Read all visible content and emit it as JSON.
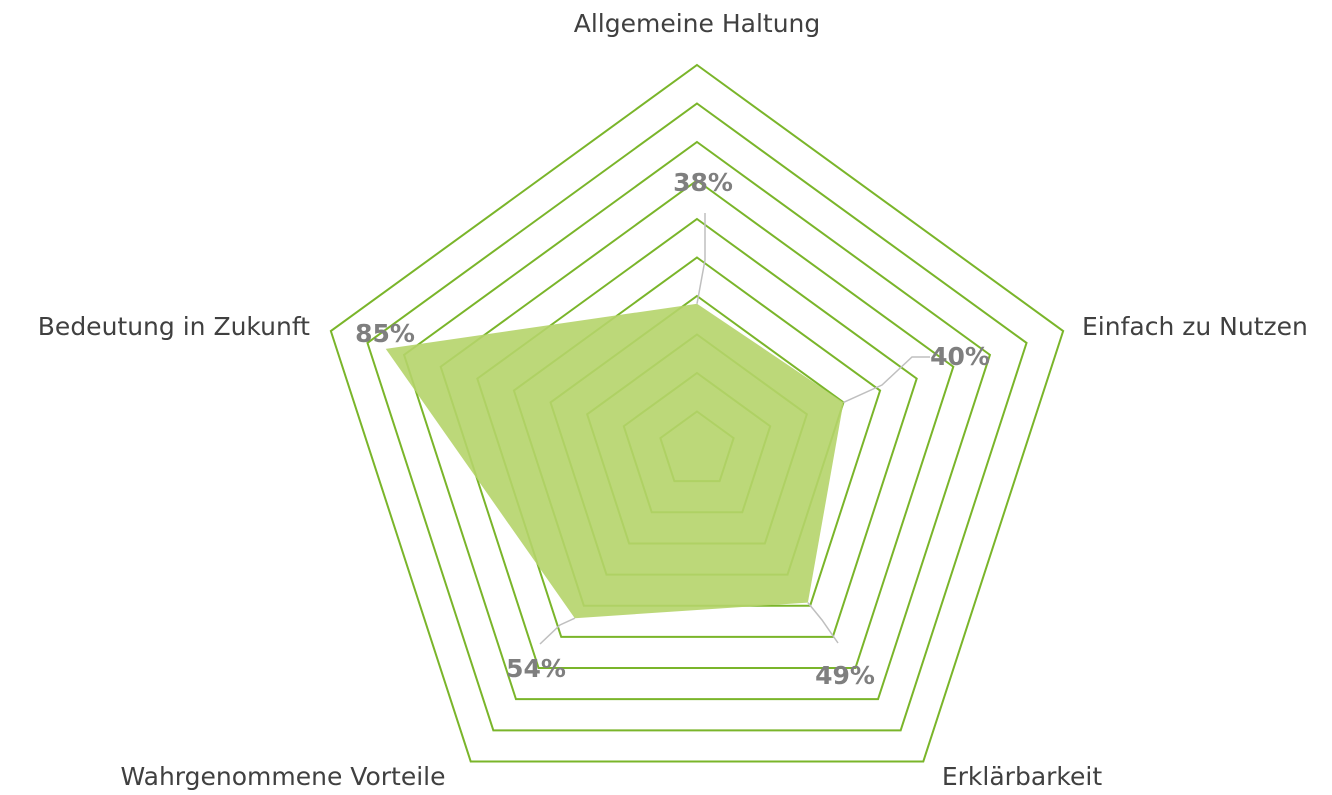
{
  "chart_data": {
    "type": "radar",
    "categories": [
      "Allgemeine Haltung",
      "Einfach zu Nutzen",
      "Erklärbarkeit",
      "Wahrgenommene Vorteile",
      "Bedeutung in Zukunft"
    ],
    "values": [
      38,
      40,
      49,
      54,
      85
    ],
    "value_labels": [
      "38%",
      "40%",
      "49%",
      "54%",
      "85%"
    ],
    "color": "#b5d46a",
    "grid_color": "#7ab52a",
    "ylim": [
      0,
      100
    ],
    "yticks": [
      10,
      20,
      30,
      40,
      50,
      60,
      70,
      80,
      90,
      100
    ],
    "grid": true
  }
}
